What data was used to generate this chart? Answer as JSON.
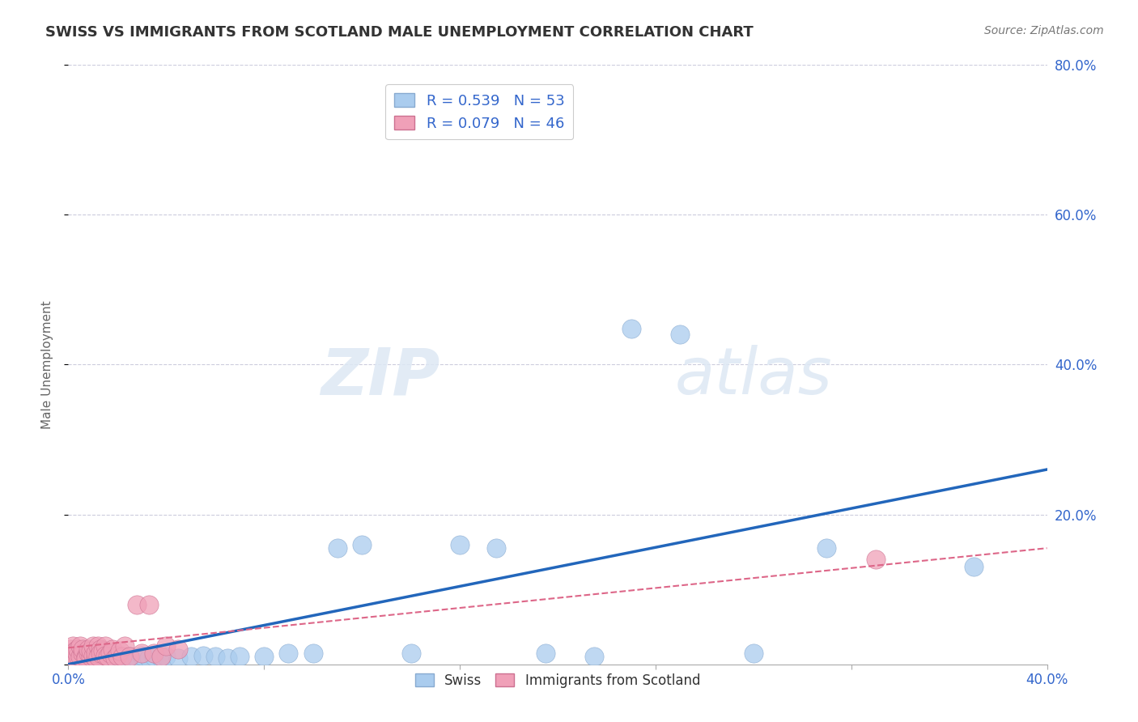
{
  "title": "SWISS VS IMMIGRANTS FROM SCOTLAND MALE UNEMPLOYMENT CORRELATION CHART",
  "source": "Source: ZipAtlas.com",
  "ylabel": "Male Unemployment",
  "xlim": [
    0.0,
    0.4
  ],
  "ylim": [
    0.0,
    0.8
  ],
  "xticks": [
    0.0,
    0.08,
    0.16,
    0.24,
    0.32,
    0.4
  ],
  "yticks": [
    0.0,
    0.2,
    0.4,
    0.6,
    0.8
  ],
  "xtick_labels_show": [
    "0.0%",
    "",
    "",
    "",
    "",
    "40.0%"
  ],
  "ytick_labels_right": [
    "",
    "20.0%",
    "40.0%",
    "60.0%",
    "80.0%"
  ],
  "swiss_R": 0.539,
  "swiss_N": 53,
  "scotland_R": 0.079,
  "scotland_N": 46,
  "swiss_color": "#aaccee",
  "scotland_color": "#f0a0b8",
  "swiss_line_color": "#2266bb",
  "scotland_line_color": "#dd6688",
  "background_color": "#ffffff",
  "grid_color": "#ccccdd",
  "watermark_zip": "ZIP",
  "watermark_atlas": "atlas",
  "swiss_x": [
    0.001,
    0.002,
    0.002,
    0.003,
    0.003,
    0.004,
    0.004,
    0.005,
    0.005,
    0.006,
    0.006,
    0.007,
    0.008,
    0.008,
    0.009,
    0.01,
    0.011,
    0.012,
    0.013,
    0.014,
    0.015,
    0.016,
    0.018,
    0.02,
    0.022,
    0.025,
    0.028,
    0.03,
    0.033,
    0.035,
    0.038,
    0.04,
    0.045,
    0.05,
    0.055,
    0.06,
    0.065,
    0.07,
    0.08,
    0.09,
    0.1,
    0.11,
    0.12,
    0.14,
    0.16,
    0.175,
    0.195,
    0.215,
    0.23,
    0.25,
    0.28,
    0.31,
    0.37
  ],
  "swiss_y": [
    0.01,
    0.008,
    0.012,
    0.01,
    0.015,
    0.008,
    0.012,
    0.01,
    0.008,
    0.012,
    0.01,
    0.008,
    0.01,
    0.012,
    0.008,
    0.01,
    0.008,
    0.012,
    0.008,
    0.01,
    0.008,
    0.01,
    0.008,
    0.01,
    0.008,
    0.01,
    0.008,
    0.012,
    0.008,
    0.01,
    0.008,
    0.01,
    0.008,
    0.01,
    0.012,
    0.01,
    0.008,
    0.01,
    0.01,
    0.015,
    0.015,
    0.155,
    0.16,
    0.015,
    0.16,
    0.155,
    0.015,
    0.01,
    0.448,
    0.44,
    0.015,
    0.155,
    0.13
  ],
  "scotland_x": [
    0.001,
    0.001,
    0.002,
    0.002,
    0.003,
    0.003,
    0.004,
    0.004,
    0.005,
    0.005,
    0.006,
    0.006,
    0.007,
    0.007,
    0.008,
    0.008,
    0.009,
    0.009,
    0.01,
    0.01,
    0.011,
    0.011,
    0.012,
    0.012,
    0.013,
    0.013,
    0.014,
    0.015,
    0.015,
    0.016,
    0.017,
    0.018,
    0.019,
    0.02,
    0.021,
    0.022,
    0.023,
    0.025,
    0.028,
    0.03,
    0.033,
    0.035,
    0.038,
    0.04,
    0.045,
    0.33
  ],
  "scotland_y": [
    0.01,
    0.02,
    0.015,
    0.025,
    0.008,
    0.018,
    0.012,
    0.02,
    0.01,
    0.025,
    0.015,
    0.02,
    0.01,
    0.008,
    0.015,
    0.02,
    0.01,
    0.018,
    0.012,
    0.025,
    0.008,
    0.015,
    0.025,
    0.01,
    0.02,
    0.015,
    0.018,
    0.025,
    0.012,
    0.01,
    0.015,
    0.02,
    0.008,
    0.012,
    0.018,
    0.01,
    0.025,
    0.01,
    0.08,
    0.015,
    0.08,
    0.015,
    0.01,
    0.025,
    0.02,
    0.14
  ],
  "swiss_line_x0": 0.0,
  "swiss_line_y0": 0.0,
  "swiss_line_x1": 0.4,
  "swiss_line_y1": 0.26,
  "scotland_line_x0": 0.0,
  "scotland_line_y0": 0.022,
  "scotland_line_x1": 0.4,
  "scotland_line_y1": 0.155
}
